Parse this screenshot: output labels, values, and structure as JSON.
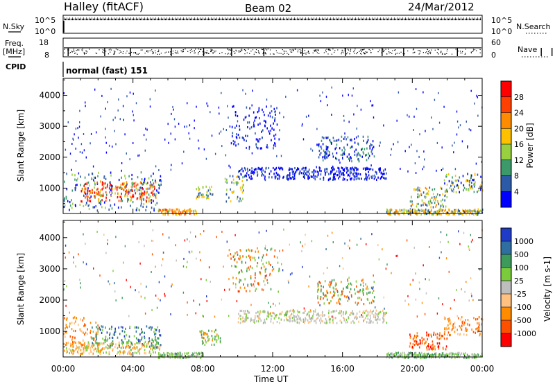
{
  "header": {
    "station": "Halley (fitACF)",
    "beam": "Beam 02",
    "date": "24/Mar/2012"
  },
  "top_panels": {
    "nsky_label": "N.Sky",
    "nsky_ticks": [
      "10^5",
      "10^0"
    ],
    "nsearch_label": "N.Search",
    "nsearch_ticks": [
      "10^5",
      "10^0"
    ],
    "freq_label": "Freq.",
    "freq_unit": "[MHz]",
    "freq_ticks": [
      "18",
      "8"
    ],
    "nave_label": "Nave",
    "nave_ticks": [
      "60",
      "0"
    ],
    "cpid_label": "CPID",
    "cpid_value": "normal (fast) 151"
  },
  "chart_data": [
    {
      "type": "heatmap",
      "name": "power",
      "title": "",
      "xlabel": "Time UT",
      "ylabel": "Slant Range [km]",
      "xlim": [
        0,
        24
      ],
      "ylim": [
        180,
        4550
      ],
      "xticks": [
        "00:00",
        "04:00",
        "08:00",
        "12:00",
        "16:00",
        "20:00",
        "00:00"
      ],
      "yticks": [
        "1000",
        "2000",
        "3000",
        "4000"
      ],
      "colorbar": {
        "label": "Power [dB]",
        "ticks": [
          "28",
          "24",
          "20",
          "16",
          "12",
          "8",
          "4"
        ],
        "colors": [
          "#ff0000",
          "#ff4000",
          "#ff8c00",
          "#ffc000",
          "#98d040",
          "#3c9a6a",
          "#2c5aa8",
          "#0000ff"
        ]
      },
      "regions": [
        {
          "t0": 0.0,
          "t1": 5.6,
          "r0": 300,
          "r1": 1550,
          "levels": [
            4,
            4,
            5,
            5,
            6,
            6,
            7,
            7
          ]
        },
        {
          "t0": 1.0,
          "t1": 5.4,
          "r0": 600,
          "r1": 1250,
          "levels": [
            0,
            0,
            1,
            1,
            2,
            2,
            3
          ]
        },
        {
          "t0": 5.4,
          "t1": 7.6,
          "r0": 180,
          "r1": 350,
          "levels": [
            1,
            2,
            2,
            3,
            4
          ]
        },
        {
          "t0": 7.6,
          "t1": 8.6,
          "r0": 700,
          "r1": 1100,
          "levels": [
            3,
            4,
            5,
            6
          ]
        },
        {
          "t0": 9.2,
          "t1": 10.3,
          "r0": 600,
          "r1": 1450,
          "levels": [
            3,
            4,
            5,
            6,
            6
          ]
        },
        {
          "t0": 9.6,
          "t1": 12.4,
          "r0": 2300,
          "r1": 3700,
          "levels": [
            6,
            7,
            7
          ]
        },
        {
          "t0": 10.0,
          "t1": 18.5,
          "r0": 1300,
          "r1": 1700,
          "levels": [
            6,
            7,
            7
          ]
        },
        {
          "t0": 14.5,
          "t1": 17.8,
          "r0": 1900,
          "r1": 2700,
          "levels": [
            5,
            6,
            7
          ]
        },
        {
          "t0": 19.8,
          "t1": 22.0,
          "r0": 400,
          "r1": 1050,
          "levels": [
            2,
            3,
            4,
            5,
            6
          ]
        },
        {
          "t0": 21.8,
          "t1": 24.0,
          "r0": 900,
          "r1": 1500,
          "levels": [
            3,
            4,
            5,
            6,
            7
          ]
        },
        {
          "t0": 18.5,
          "t1": 24.0,
          "r0": 180,
          "r1": 350,
          "levels": [
            2,
            3,
            4,
            6
          ]
        }
      ]
    },
    {
      "type": "heatmap",
      "name": "velocity",
      "title": "",
      "xlabel": "Time UT",
      "ylabel": "Slant Range [km]",
      "xlim": [
        0,
        24
      ],
      "ylim": [
        180,
        4550
      ],
      "xticks": [
        "00:00",
        "04:00",
        "08:00",
        "12:00",
        "16:00",
        "20:00",
        "00:00"
      ],
      "yticks": [
        "1000",
        "2000",
        "3000",
        "4000"
      ],
      "colorbar": {
        "label": "Velocity [m s-1]",
        "ticks": [
          "1000",
          "500",
          "100",
          "25",
          "-25",
          "-100",
          "-500",
          "-1000"
        ],
        "colors": [
          "#1e3cc8",
          "#2e6ea0",
          "#3c9a5a",
          "#7acc3c",
          "#bebebe",
          "#ffc080",
          "#ff8c00",
          "#ff5000",
          "#ff0000"
        ]
      },
      "regions": [
        {
          "t0": 0.0,
          "t1": 2.0,
          "r0": 500,
          "r1": 1500,
          "levels": [
            6,
            6,
            7,
            5
          ]
        },
        {
          "t0": 1.6,
          "t1": 5.6,
          "r0": 500,
          "r1": 1200,
          "levels": [
            1,
            2,
            2,
            3,
            0
          ]
        },
        {
          "t0": 0.0,
          "t1": 5.6,
          "r0": 300,
          "r1": 700,
          "levels": [
            5,
            6,
            3
          ]
        },
        {
          "t0": 5.4,
          "t1": 8.0,
          "r0": 180,
          "r1": 350,
          "levels": [
            2,
            3,
            3,
            4
          ]
        },
        {
          "t0": 7.8,
          "t1": 9.0,
          "r0": 600,
          "r1": 1100,
          "levels": [
            2,
            3,
            6
          ]
        },
        {
          "t0": 9.4,
          "t1": 12.4,
          "r0": 2300,
          "r1": 3700,
          "levels": [
            2,
            3,
            6,
            7
          ]
        },
        {
          "t0": 10.0,
          "t1": 18.5,
          "r0": 1300,
          "r1": 1700,
          "levels": [
            4,
            4,
            5,
            3
          ]
        },
        {
          "t0": 14.5,
          "t1": 17.8,
          "r0": 1900,
          "r1": 2700,
          "levels": [
            3,
            6,
            7,
            2
          ]
        },
        {
          "t0": 19.8,
          "t1": 22.0,
          "r0": 450,
          "r1": 1000,
          "levels": [
            6,
            7,
            7,
            8
          ]
        },
        {
          "t0": 21.8,
          "t1": 24.0,
          "r0": 900,
          "r1": 1500,
          "levels": [
            6,
            7,
            6,
            5
          ]
        },
        {
          "t0": 18.5,
          "t1": 24.0,
          "r0": 180,
          "r1": 350,
          "levels": [
            3,
            4,
            2
          ]
        }
      ]
    }
  ]
}
